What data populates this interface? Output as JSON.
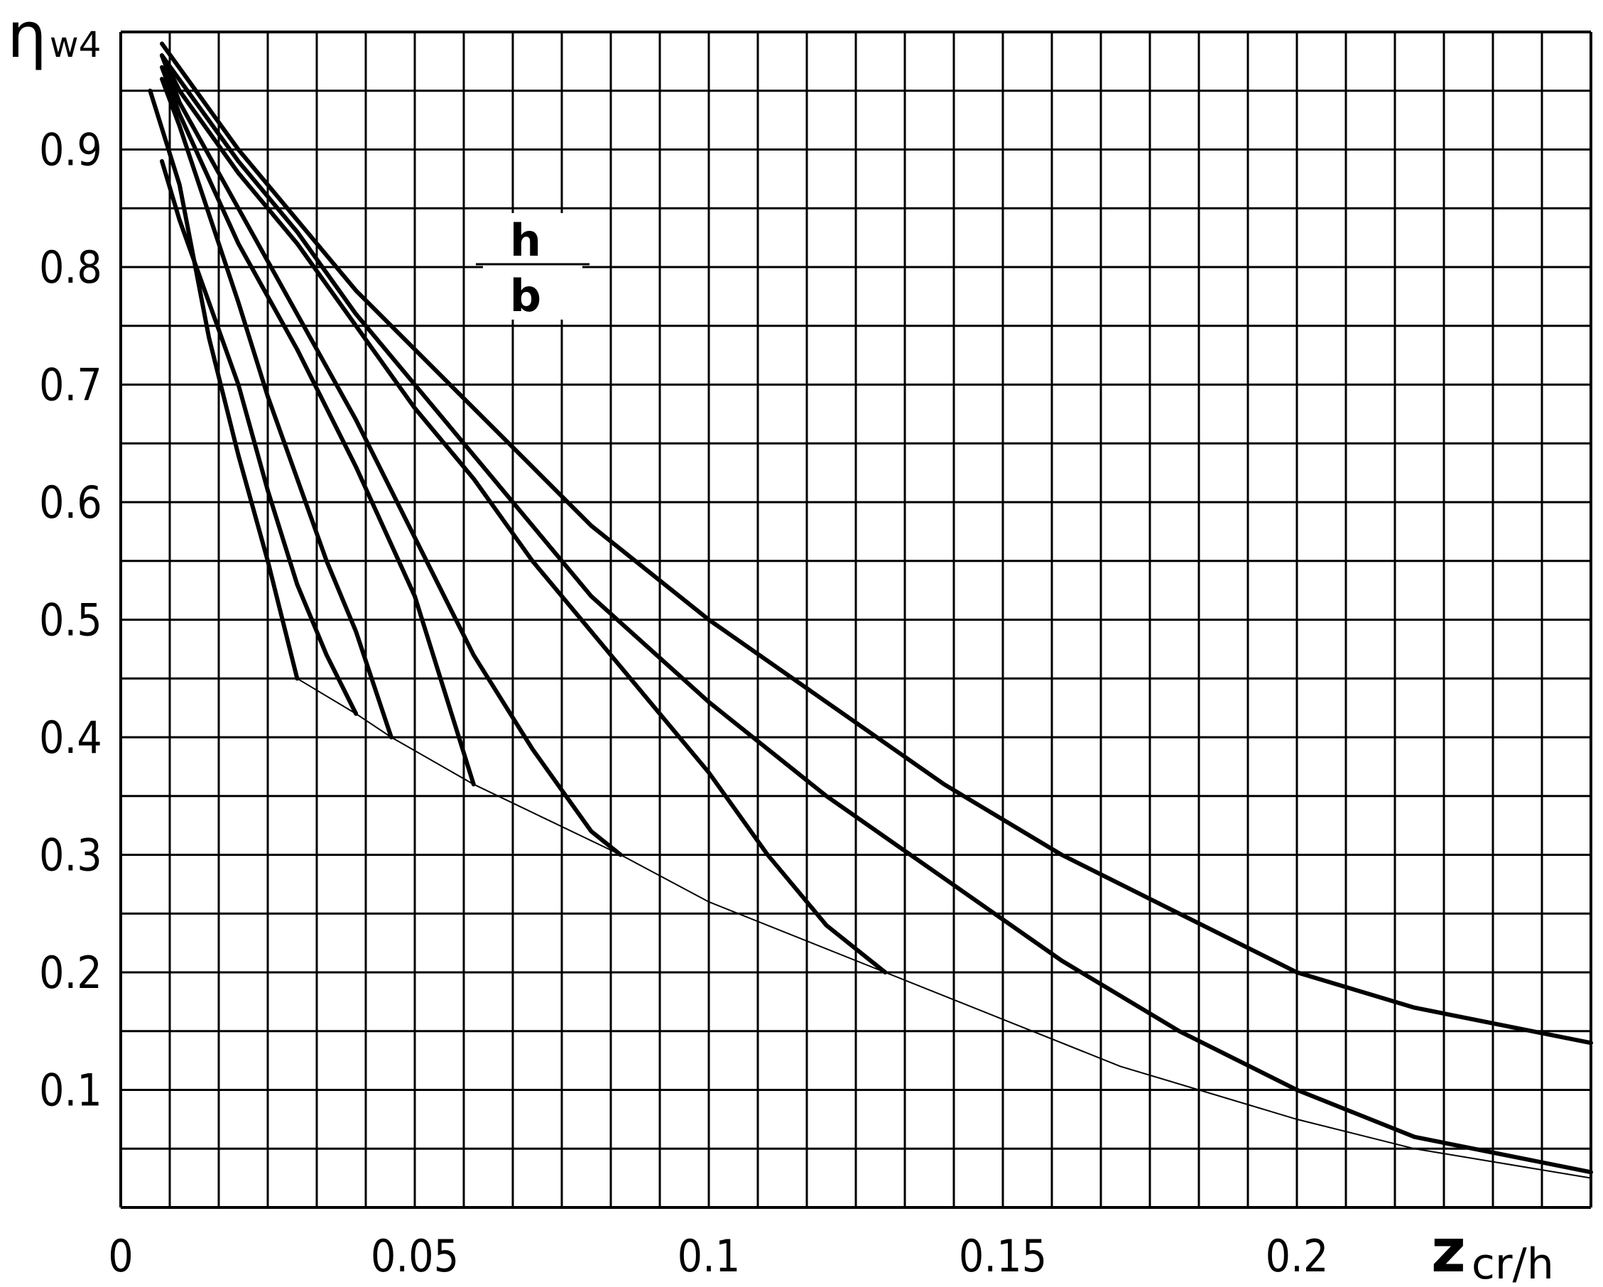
{
  "chart_data": {
    "type": "line",
    "title": "",
    "ylabel": "ηw4",
    "ylabel_main": "η",
    "ylabel_sub": "w4",
    "xlabel": "zcr/h",
    "xlabel_main": "z",
    "xlabel_sub": "cr/h",
    "xlim": [
      0,
      0.25
    ],
    "ylim": [
      0,
      1.0
    ],
    "grid": true,
    "x_tick_labels": [
      "0",
      "0.05",
      "0.1",
      "0.15",
      "0.2"
    ],
    "x_tick_values": [
      0,
      0.05,
      0.1,
      0.15,
      0.2
    ],
    "y_tick_labels": [
      "0.1",
      "0.2",
      "0.3",
      "0.4",
      "0.5",
      "0.6",
      "0.7",
      "0.8",
      "0.9"
    ],
    "y_tick_values": [
      0.1,
      0.2,
      0.3,
      0.4,
      0.5,
      0.6,
      0.7,
      0.8,
      0.9
    ],
    "annotation": {
      "numerator": "h",
      "denominator": "b",
      "x": 0.07,
      "y": 0.8
    },
    "series": [
      {
        "points": [
          [
            0.005,
            0.95
          ],
          [
            0.01,
            0.87
          ],
          [
            0.015,
            0.74
          ],
          [
            0.02,
            0.64
          ],
          [
            0.025,
            0.55
          ],
          [
            0.03,
            0.45
          ]
        ]
      },
      {
        "points": [
          [
            0.007,
            0.89
          ],
          [
            0.01,
            0.84
          ],
          [
            0.02,
            0.7
          ],
          [
            0.025,
            0.61
          ],
          [
            0.03,
            0.53
          ],
          [
            0.035,
            0.47
          ],
          [
            0.04,
            0.42
          ]
        ]
      },
      {
        "points": [
          [
            0.007,
            0.96
          ],
          [
            0.01,
            0.92
          ],
          [
            0.02,
            0.77
          ],
          [
            0.025,
            0.69
          ],
          [
            0.03,
            0.62
          ],
          [
            0.035,
            0.55
          ],
          [
            0.04,
            0.49
          ],
          [
            0.046,
            0.4
          ]
        ]
      },
      {
        "points": [
          [
            0.007,
            0.97
          ],
          [
            0.01,
            0.93
          ],
          [
            0.02,
            0.82
          ],
          [
            0.03,
            0.73
          ],
          [
            0.04,
            0.63
          ],
          [
            0.05,
            0.52
          ],
          [
            0.055,
            0.44
          ],
          [
            0.06,
            0.36
          ]
        ]
      },
      {
        "points": [
          [
            0.007,
            0.98
          ],
          [
            0.01,
            0.94
          ],
          [
            0.02,
            0.85
          ],
          [
            0.03,
            0.76
          ],
          [
            0.04,
            0.67
          ],
          [
            0.05,
            0.57
          ],
          [
            0.06,
            0.47
          ],
          [
            0.07,
            0.39
          ],
          [
            0.08,
            0.32
          ],
          [
            0.085,
            0.3
          ]
        ]
      },
      {
        "points": [
          [
            0.007,
            0.98
          ],
          [
            0.01,
            0.95
          ],
          [
            0.02,
            0.88
          ],
          [
            0.03,
            0.82
          ],
          [
            0.04,
            0.75
          ],
          [
            0.05,
            0.68
          ],
          [
            0.06,
            0.62
          ],
          [
            0.07,
            0.55
          ],
          [
            0.08,
            0.49
          ],
          [
            0.09,
            0.43
          ],
          [
            0.1,
            0.37
          ],
          [
            0.11,
            0.3
          ],
          [
            0.12,
            0.24
          ],
          [
            0.13,
            0.2
          ]
        ]
      },
      {
        "points": [
          [
            0.007,
            0.98
          ],
          [
            0.02,
            0.89
          ],
          [
            0.03,
            0.83
          ],
          [
            0.04,
            0.76
          ],
          [
            0.05,
            0.7
          ],
          [
            0.06,
            0.64
          ],
          [
            0.07,
            0.58
          ],
          [
            0.08,
            0.52
          ],
          [
            0.1,
            0.43
          ],
          [
            0.12,
            0.35
          ],
          [
            0.14,
            0.28
          ],
          [
            0.16,
            0.21
          ],
          [
            0.18,
            0.15
          ],
          [
            0.2,
            0.1
          ],
          [
            0.22,
            0.06
          ],
          [
            0.25,
            0.03
          ]
        ]
      },
      {
        "points": [
          [
            0.007,
            0.99
          ],
          [
            0.02,
            0.9
          ],
          [
            0.03,
            0.84
          ],
          [
            0.04,
            0.78
          ],
          [
            0.05,
            0.73
          ],
          [
            0.06,
            0.68
          ],
          [
            0.07,
            0.63
          ],
          [
            0.08,
            0.58
          ],
          [
            0.1,
            0.5
          ],
          [
            0.12,
            0.43
          ],
          [
            0.14,
            0.36
          ],
          [
            0.16,
            0.3
          ],
          [
            0.18,
            0.25
          ],
          [
            0.2,
            0.2
          ],
          [
            0.22,
            0.17
          ],
          [
            0.24,
            0.15
          ],
          [
            0.25,
            0.14
          ]
        ]
      },
      {
        "envelope": true,
        "points": [
          [
            0.03,
            0.45
          ],
          [
            0.04,
            0.42
          ],
          [
            0.046,
            0.4
          ],
          [
            0.06,
            0.36
          ],
          [
            0.085,
            0.3
          ],
          [
            0.1,
            0.26
          ],
          [
            0.13,
            0.2
          ],
          [
            0.15,
            0.16
          ],
          [
            0.17,
            0.12
          ],
          [
            0.2,
            0.075
          ],
          [
            0.22,
            0.05
          ],
          [
            0.25,
            0.025
          ]
        ]
      }
    ]
  }
}
